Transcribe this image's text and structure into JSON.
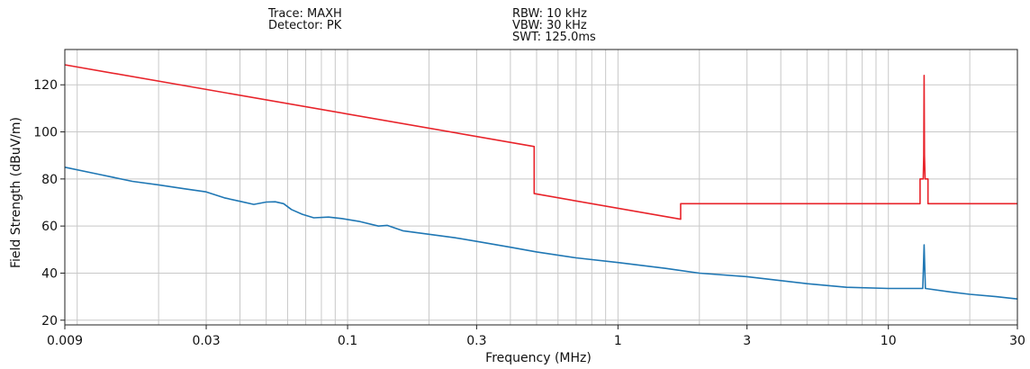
{
  "header": {
    "trace": "Trace: MAXH",
    "detector": "Detector: PK",
    "rbw": "RBW: 10 kHz",
    "vbw": "VBW: 30 kHz",
    "swt": "SWT: 125.0ms"
  },
  "chart_data": {
    "type": "line",
    "title": "",
    "xlabel": "Frequency (MHz)",
    "ylabel": "Field Strength (dBuV/m)",
    "xscale": "log",
    "xlim": [
      0.009,
      30
    ],
    "ylim": [
      18,
      135
    ],
    "grid": true,
    "x_ticks": [
      {
        "value": 0.009,
        "label": "0.009"
      },
      {
        "value": 0.03,
        "label": "0.03"
      },
      {
        "value": 0.1,
        "label": "0.1"
      },
      {
        "value": 0.3,
        "label": "0.3"
      },
      {
        "value": 1,
        "label": "1"
      },
      {
        "value": 3,
        "label": "3"
      },
      {
        "value": 10,
        "label": "10"
      },
      {
        "value": 30,
        "label": "30"
      }
    ],
    "y_ticks": [
      {
        "value": 20,
        "label": "20"
      },
      {
        "value": 40,
        "label": "40"
      },
      {
        "value": 60,
        "label": "60"
      },
      {
        "value": 80,
        "label": "80"
      },
      {
        "value": 100,
        "label": "100"
      },
      {
        "value": 120,
        "label": "120"
      }
    ],
    "series": [
      {
        "color": "#e8232a",
        "points": [
          [
            0.009,
            128.5
          ],
          [
            0.49,
            93.8
          ],
          [
            0.49,
            73.8
          ],
          [
            1.705,
            62.9
          ],
          [
            1.705,
            69.5
          ],
          [
            13.1,
            69.5
          ],
          [
            13.1,
            80
          ],
          [
            13.45,
            80
          ],
          [
            13.52,
            90
          ],
          [
            13.56,
            124
          ],
          [
            13.6,
            90
          ],
          [
            13.67,
            80
          ],
          [
            14.01,
            80
          ],
          [
            14.01,
            69.5
          ],
          [
            30,
            69.5
          ]
        ]
      },
      {
        "color": "#1f77b4",
        "points": [
          [
            0.009,
            85
          ],
          [
            0.012,
            82
          ],
          [
            0.016,
            79
          ],
          [
            0.02,
            77.5
          ],
          [
            0.025,
            75.8
          ],
          [
            0.03,
            74.5
          ],
          [
            0.035,
            72
          ],
          [
            0.04,
            70.5
          ],
          [
            0.045,
            69.2
          ],
          [
            0.05,
            70.2
          ],
          [
            0.054,
            70.3
          ],
          [
            0.058,
            69.5
          ],
          [
            0.062,
            67
          ],
          [
            0.068,
            65
          ],
          [
            0.075,
            63.5
          ],
          [
            0.085,
            63.8
          ],
          [
            0.095,
            63.2
          ],
          [
            0.11,
            62
          ],
          [
            0.13,
            60
          ],
          [
            0.14,
            60.3
          ],
          [
            0.16,
            58
          ],
          [
            0.2,
            56.5
          ],
          [
            0.25,
            55
          ],
          [
            0.3,
            53.5
          ],
          [
            0.4,
            51
          ],
          [
            0.5,
            49
          ],
          [
            0.7,
            46.5
          ],
          [
            1,
            44.5
          ],
          [
            1.5,
            42
          ],
          [
            2,
            40
          ],
          [
            3,
            38.5
          ],
          [
            5,
            35.5
          ],
          [
            7,
            34
          ],
          [
            10,
            33.5
          ],
          [
            13.4,
            33.5
          ],
          [
            13.56,
            52
          ],
          [
            13.7,
            33.5
          ],
          [
            17,
            32
          ],
          [
            20,
            31
          ],
          [
            25,
            30
          ],
          [
            30,
            29
          ]
        ]
      }
    ]
  }
}
